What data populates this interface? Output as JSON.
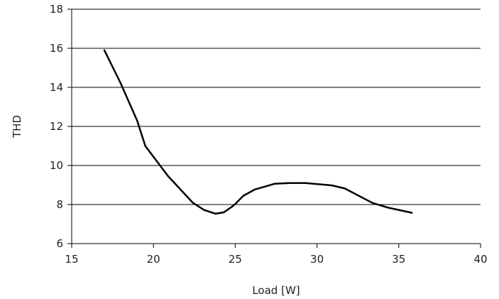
{
  "chart_data": {
    "type": "line",
    "xlabel": "Load [W]",
    "ylabel": "THD",
    "xlim": [
      15,
      40
    ],
    "ylim": [
      6,
      18
    ],
    "x_ticks": [
      "15",
      "20",
      "25",
      "30",
      "35",
      "40"
    ],
    "y_ticks": [
      "6",
      "8",
      "10",
      "12",
      "14",
      "16",
      "18"
    ],
    "grid": "horizontal",
    "line_color": "#000000",
    "series": [
      {
        "x": [
          17.0,
          18.0,
          19.0,
          19.5,
          20.9,
          22.4,
          23.1,
          23.8,
          24.3,
          24.9,
          25.5,
          26.2,
          27.4,
          28.3,
          29.3,
          30.9,
          31.7,
          33.4,
          34.3,
          35.8
        ],
        "y": [
          15.9,
          14.2,
          12.3,
          11.0,
          9.45,
          8.1,
          7.72,
          7.53,
          7.6,
          7.95,
          8.45,
          8.77,
          9.06,
          9.1,
          9.1,
          8.98,
          8.82,
          8.08,
          7.85,
          7.58
        ]
      }
    ]
  }
}
